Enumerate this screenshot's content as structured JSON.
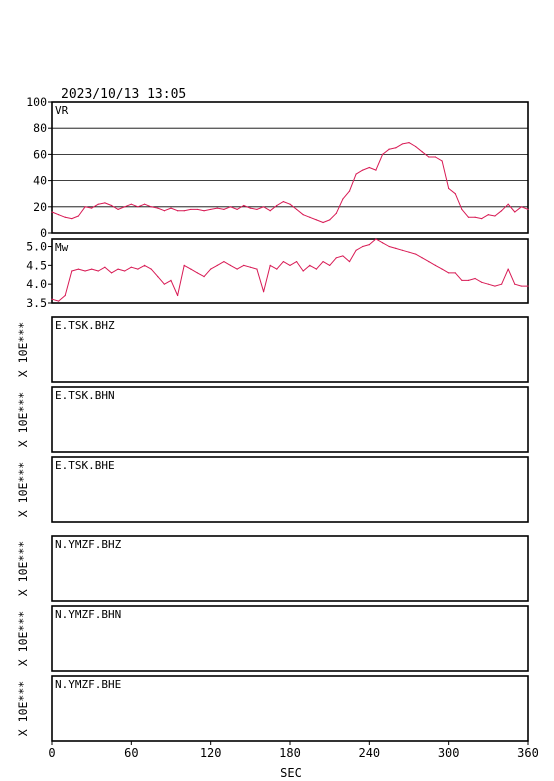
{
  "header": {
    "timestamp": "2023/10/13  13:05"
  },
  "colors": {
    "trace": "#d81b55",
    "frame": "#000000",
    "background": "#ffffff"
  },
  "chart_data": [
    {
      "type": "line",
      "label": "VR",
      "ylim": [
        0,
        100
      ],
      "yticks": [
        "0",
        "20",
        "40",
        "60",
        "80",
        "100"
      ],
      "grid": true,
      "x": [
        0,
        5,
        10,
        15,
        20,
        25,
        30,
        35,
        40,
        45,
        50,
        55,
        60,
        65,
        70,
        75,
        80,
        85,
        90,
        95,
        100,
        105,
        110,
        115,
        120,
        125,
        130,
        135,
        140,
        145,
        150,
        155,
        160,
        165,
        170,
        175,
        180,
        185,
        190,
        195,
        200,
        205,
        210,
        215,
        220,
        225,
        230,
        235,
        240,
        245,
        250,
        255,
        260,
        265,
        270,
        275,
        280,
        285,
        290,
        295,
        300,
        305,
        310,
        315,
        320,
        325,
        330,
        335,
        340,
        345,
        350,
        355,
        360
      ],
      "values": [
        16,
        14,
        12,
        11,
        13,
        20,
        19,
        22,
        23,
        21,
        18,
        20,
        22,
        20,
        22,
        20,
        19,
        17,
        19,
        17,
        17,
        18,
        18,
        17,
        18,
        19,
        18,
        20,
        18,
        21,
        19,
        18,
        20,
        17,
        21,
        24,
        22,
        18,
        14,
        12,
        10,
        8,
        10,
        15,
        26,
        32,
        45,
        48,
        50,
        48,
        60,
        64,
        65,
        68,
        69,
        66,
        62,
        58,
        58,
        55,
        34,
        30,
        18,
        12,
        12,
        11,
        14,
        13,
        17,
        22,
        16,
        20,
        18
      ]
    },
    {
      "type": "line",
      "label": "Mw",
      "ylim": [
        3.5,
        5.2
      ],
      "yticks": [
        "3.5",
        "4.0",
        "4.5",
        "5.0"
      ],
      "grid": false,
      "x": [
        0,
        5,
        10,
        15,
        20,
        25,
        30,
        35,
        40,
        45,
        50,
        55,
        60,
        65,
        70,
        75,
        80,
        85,
        90,
        95,
        100,
        105,
        110,
        115,
        120,
        125,
        130,
        135,
        140,
        145,
        150,
        155,
        160,
        165,
        170,
        175,
        180,
        185,
        190,
        195,
        200,
        205,
        210,
        215,
        220,
        225,
        230,
        235,
        240,
        245,
        250,
        255,
        260,
        265,
        270,
        275,
        280,
        285,
        290,
        295,
        300,
        305,
        310,
        315,
        320,
        325,
        330,
        335,
        340,
        345,
        350,
        355,
        360
      ],
      "values": [
        3.6,
        3.55,
        3.7,
        4.35,
        4.4,
        4.35,
        4.4,
        4.35,
        4.45,
        4.3,
        4.4,
        4.35,
        4.45,
        4.4,
        4.5,
        4.4,
        4.2,
        4.0,
        4.1,
        3.7,
        4.5,
        4.4,
        4.3,
        4.2,
        4.4,
        4.5,
        4.6,
        4.5,
        4.4,
        4.5,
        4.45,
        4.4,
        3.8,
        4.5,
        4.4,
        4.6,
        4.5,
        4.6,
        4.35,
        4.5,
        4.4,
        4.6,
        4.5,
        4.7,
        4.75,
        4.6,
        4.9,
        5.0,
        5.05,
        5.2,
        5.1,
        5.0,
        4.95,
        4.9,
        4.85,
        4.8,
        4.7,
        4.6,
        4.5,
        4.4,
        4.3,
        4.3,
        4.1,
        4.1,
        4.15,
        4.05,
        4.0,
        3.95,
        4.0,
        4.4,
        4.0,
        3.95,
        3.95
      ]
    },
    {
      "type": "line",
      "ylabel": "X 10E***",
      "label": "E.TSK.BHZ",
      "values": []
    },
    {
      "type": "line",
      "ylabel": "X 10E***",
      "label": "E.TSK.BHN",
      "values": []
    },
    {
      "type": "line",
      "ylabel": "X 10E***",
      "label": "E.TSK.BHE",
      "values": []
    },
    {
      "type": "line",
      "ylabel": "X 10E***",
      "label": "N.YMZF.BHZ",
      "values": []
    },
    {
      "type": "line",
      "ylabel": "X 10E***",
      "label": "N.YMZF.BHN",
      "values": []
    },
    {
      "type": "line",
      "ylabel": "X 10E***",
      "label": "N.YMZF.BHE",
      "values": []
    }
  ],
  "x_axis": {
    "xlabel": "SEC",
    "xlim": [
      0,
      360
    ],
    "ticks": [
      {
        "value": 0,
        "label": "0"
      },
      {
        "value": 60,
        "label": "60"
      },
      {
        "value": 120,
        "label": "120"
      },
      {
        "value": 180,
        "label": "180"
      },
      {
        "value": 240,
        "label": "240"
      },
      {
        "value": 300,
        "label": "300"
      },
      {
        "value": 360,
        "label": "360"
      }
    ]
  }
}
